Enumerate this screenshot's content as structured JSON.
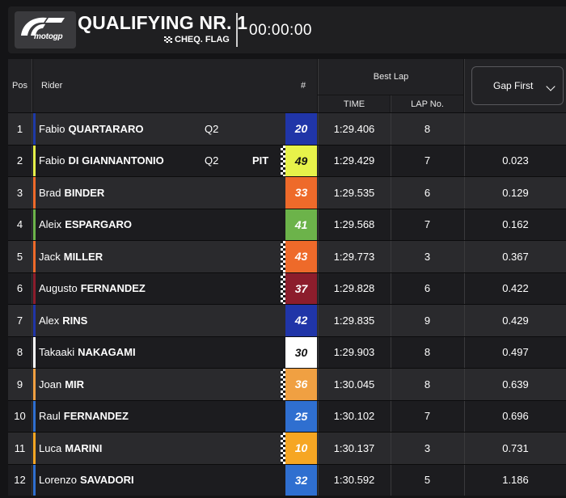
{
  "header": {
    "logo_text": "motogp",
    "session_title": "QUALIFYING NR. 1",
    "flag_status": "CHEQ. FLAG",
    "timer": "00:00:00"
  },
  "table": {
    "headers": {
      "pos": "Pos",
      "rider": "Rider",
      "number": "#",
      "best_lap": "Best Lap",
      "time": "TIME",
      "lap_no": "LAP No.",
      "gap_selector": "Gap First"
    },
    "rows": [
      {
        "pos": "1",
        "first": "Fabio",
        "last": "QUARTARARO",
        "tag": "Q2",
        "pit": "",
        "checker": false,
        "number": "20",
        "num_bg": "#2035a8",
        "num_fg": "#ffffff",
        "team_color": "#1e3aa8",
        "time": "1:29.406",
        "lap": "8",
        "gap": ""
      },
      {
        "pos": "2",
        "first": "Fabio",
        "last": "DI GIANNANTONIO",
        "tag": "Q2",
        "pit": "PIT",
        "checker": true,
        "number": "49",
        "num_bg": "#e7f24a",
        "num_fg": "#111111",
        "team_color": "#e6f24a",
        "time": "1:29.429",
        "lap": "7",
        "gap": "0.023"
      },
      {
        "pos": "3",
        "first": "Brad",
        "last": "BINDER",
        "tag": "",
        "pit": "",
        "checker": false,
        "number": "33",
        "num_bg": "#ee6a2a",
        "num_fg": "#ffffff",
        "team_color": "#ee6a2a",
        "time": "1:29.535",
        "lap": "6",
        "gap": "0.129"
      },
      {
        "pos": "4",
        "first": "Aleix",
        "last": "ESPARGARO",
        "tag": "",
        "pit": "",
        "checker": false,
        "number": "41",
        "num_bg": "#6cb34a",
        "num_fg": "#ffffff",
        "team_color": "#6cb34a",
        "time": "1:29.568",
        "lap": "7",
        "gap": "0.162"
      },
      {
        "pos": "5",
        "first": "Jack",
        "last": "MILLER",
        "tag": "",
        "pit": "",
        "checker": true,
        "number": "43",
        "num_bg": "#ee6a2a",
        "num_fg": "#ffffff",
        "team_color": "#ee6a2a",
        "time": "1:29.773",
        "lap": "3",
        "gap": "0.367"
      },
      {
        "pos": "6",
        "first": "Augusto",
        "last": "FERNANDEZ",
        "tag": "",
        "pit": "",
        "checker": true,
        "number": "37",
        "num_bg": "#8c1d2c",
        "num_fg": "#ffffff",
        "team_color": "#8c1d2c",
        "time": "1:29.828",
        "lap": "6",
        "gap": "0.422"
      },
      {
        "pos": "7",
        "first": "Alex",
        "last": "RINS",
        "tag": "",
        "pit": "",
        "checker": false,
        "number": "42",
        "num_bg": "#2035a8",
        "num_fg": "#ffffff",
        "team_color": "#2035a8",
        "time": "1:29.835",
        "lap": "9",
        "gap": "0.429"
      },
      {
        "pos": "8",
        "first": "Takaaki",
        "last": "NAKAGAMI",
        "tag": "",
        "pit": "",
        "checker": false,
        "number": "30",
        "num_bg": "#ffffff",
        "num_fg": "#111111",
        "team_color": "#ffffff",
        "time": "1:29.903",
        "lap": "8",
        "gap": "0.497"
      },
      {
        "pos": "9",
        "first": "Joan",
        "last": "MIR",
        "tag": "",
        "pit": "",
        "checker": true,
        "number": "36",
        "num_bg": "#f0a042",
        "num_fg": "#ffffff",
        "team_color": "#f0a042",
        "time": "1:30.045",
        "lap": "8",
        "gap": "0.639"
      },
      {
        "pos": "10",
        "first": "Raul",
        "last": "FERNANDEZ",
        "tag": "",
        "pit": "",
        "checker": false,
        "number": "25",
        "num_bg": "#2f6fd0",
        "num_fg": "#ffffff",
        "team_color": "#2f6fd0",
        "time": "1:30.102",
        "lap": "7",
        "gap": "0.696"
      },
      {
        "pos": "11",
        "first": "Luca",
        "last": "MARINI",
        "tag": "",
        "pit": "",
        "checker": true,
        "number": "10",
        "num_bg": "#f6a623",
        "num_fg": "#ffffff",
        "team_color": "#f6a623",
        "time": "1:30.137",
        "lap": "3",
        "gap": "0.731"
      },
      {
        "pos": "12",
        "first": "Lorenzo",
        "last": "SAVADORI",
        "tag": "",
        "pit": "",
        "checker": false,
        "number": "32",
        "num_bg": "#2f6fd0",
        "num_fg": "#ffffff",
        "team_color": "#2f6fd0",
        "time": "1:30.592",
        "lap": "5",
        "gap": "1.186"
      }
    ]
  }
}
